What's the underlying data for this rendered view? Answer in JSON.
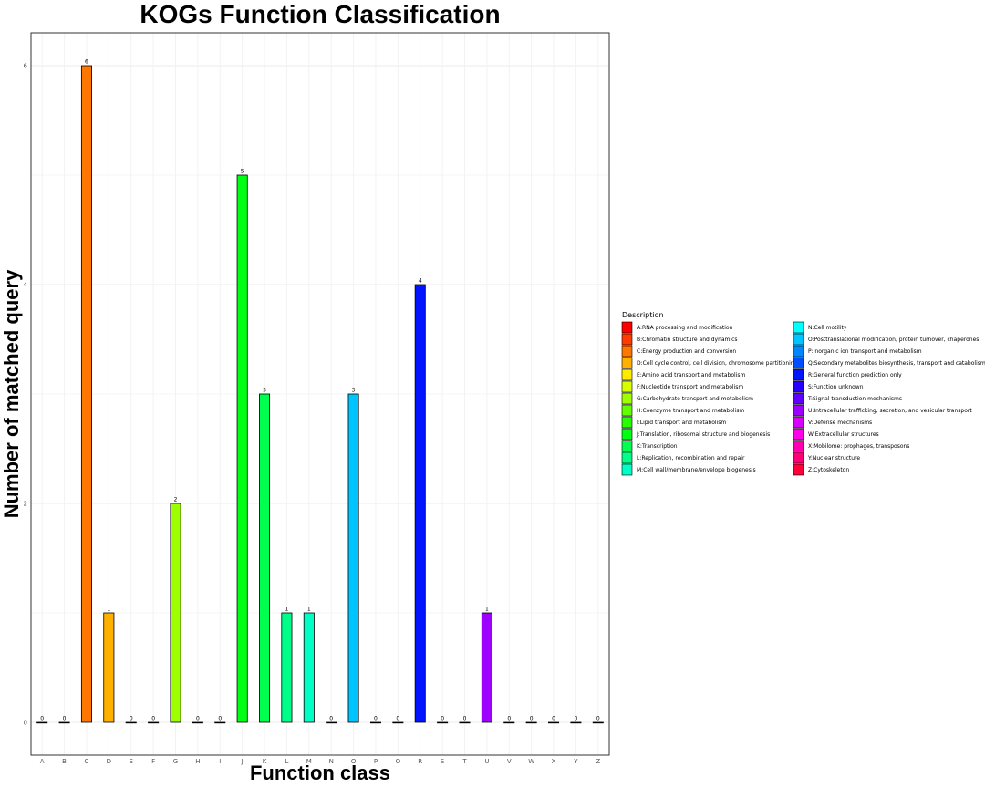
{
  "chart_data": {
    "type": "bar",
    "title": "KOGs Function Classification",
    "xlabel": "Function class",
    "ylabel": "Number of matched query",
    "ylim": [
      -0.3,
      6.3
    ],
    "yticks": [
      0,
      2,
      4,
      6
    ],
    "grid": true,
    "legend_title": "Description",
    "legend_position": "right",
    "categories": [
      "A",
      "B",
      "C",
      "D",
      "E",
      "F",
      "G",
      "H",
      "I",
      "J",
      "K",
      "L",
      "M",
      "N",
      "O",
      "P",
      "Q",
      "R",
      "S",
      "T",
      "U",
      "V",
      "W",
      "X",
      "Y",
      "Z"
    ],
    "values": [
      0,
      0,
      6,
      1,
      0,
      0,
      2,
      0,
      0,
      5,
      3,
      1,
      1,
      0,
      3,
      0,
      0,
      4,
      0,
      0,
      1,
      0,
      0,
      0,
      0,
      0
    ],
    "descriptions": [
      "A:RNA processing and modification",
      "B:Chromatin structure and dynamics",
      "C:Energy production and conversion",
      "D:Cell cycle control, cell division, chromosome partitioning",
      "E:Amino acid transport and metabolism",
      "F:Nucleotide transport and metabolism",
      "G:Carbohydrate transport and metabolism",
      "H:Coenzyme transport and metabolism",
      "I:Lipid transport and metabolism",
      "J:Translation, ribosomal structure and biogenesis",
      "K:Transcription",
      "L:Replication, recombination and repair",
      "M:Cell wall/membrane/envelope biogenesis",
      "N:Cell motility",
      "O:Posttranslational modification, protein turnover, chaperones",
      "P:Inorganic ion transport and metabolism",
      "Q:Secondary metabolites biosynthesis, transport and catabolism",
      "R:General function prediction only",
      "S:Function unknown",
      "T:Signal transduction mechanisms",
      "U:Intracellular trafficking, secretion, and vesicular transport",
      "V:Defense mechanisms",
      "W:Extracellular structures",
      "X:Mobilome: prophages, transposons",
      "Y:Nuclear structure",
      "Z:Cytoskeleton"
    ],
    "colors": [
      "#ff0000",
      "#ff3b00",
      "#ff7600",
      "#ffb100",
      "#ffeb00",
      "#d8ff00",
      "#9dff00",
      "#62ff00",
      "#27ff00",
      "#00ff14",
      "#00ff4e",
      "#00ff89",
      "#00ffc4",
      "#00ffff",
      "#00c4ff",
      "#0089ff",
      "#004eff",
      "#0014ff",
      "#2700ff",
      "#6200ff",
      "#9d00ff",
      "#d800ff",
      "#ff00eb",
      "#ff00b1",
      "#ff0076",
      "#ff003b"
    ]
  }
}
